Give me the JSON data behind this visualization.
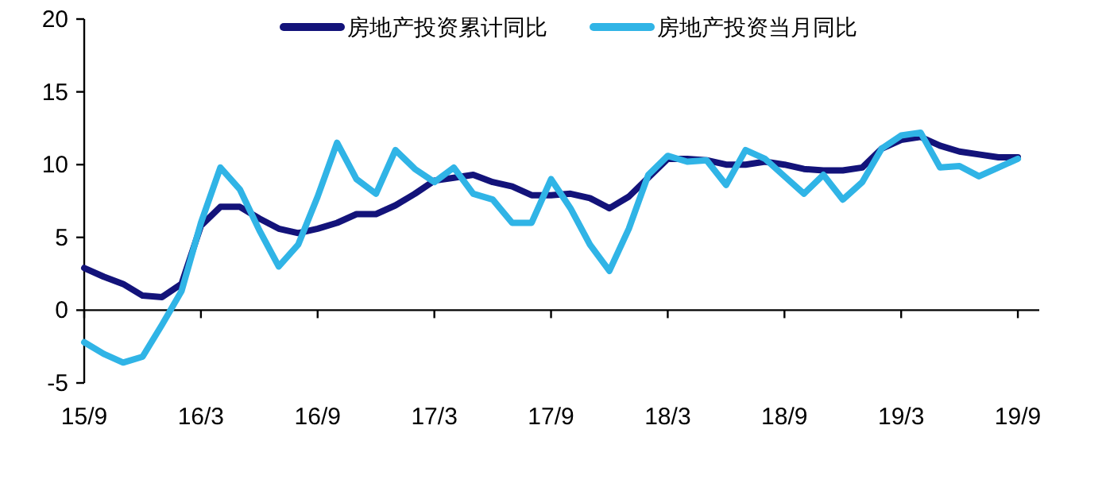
{
  "chart_data": {
    "type": "line",
    "categories": [
      "15/9",
      null,
      null,
      null,
      null,
      null,
      "16/3",
      null,
      null,
      null,
      null,
      null,
      "16/9",
      null,
      null,
      null,
      null,
      null,
      "17/3",
      null,
      null,
      null,
      null,
      null,
      "17/9",
      null,
      null,
      null,
      null,
      null,
      "18/3",
      null,
      null,
      null,
      null,
      null,
      "18/9",
      null,
      null,
      null,
      null,
      null,
      "19/3",
      null,
      null,
      null,
      null,
      null,
      "19/9"
    ],
    "series": [
      {
        "name": "房地产投资累计同比",
        "color": "#13137a",
        "values": [
          2.9,
          2.3,
          1.8,
          1.0,
          0.9,
          1.8,
          5.8,
          7.1,
          7.1,
          6.3,
          5.6,
          5.3,
          5.6,
          6.0,
          6.6,
          6.6,
          7.2,
          8.0,
          8.9,
          9.1,
          9.3,
          8.8,
          8.5,
          7.9,
          7.9,
          8.0,
          7.7,
          7.0,
          7.8,
          9.1,
          10.4,
          10.4,
          10.3,
          10.0,
          10.0,
          10.2,
          10.0,
          9.7,
          9.6,
          9.6,
          9.8,
          11.1,
          11.7,
          11.9,
          11.3,
          10.9,
          10.7,
          10.5,
          10.5
        ]
      },
      {
        "name": "房地产投资当月同比",
        "color": "#30b4e6",
        "values": [
          -2.2,
          -3.0,
          -3.6,
          -3.2,
          -1.0,
          1.3,
          6.0,
          9.8,
          8.3,
          5.5,
          3.0,
          4.5,
          7.8,
          11.5,
          9.0,
          8.0,
          11.0,
          9.7,
          8.8,
          9.8,
          8.0,
          7.6,
          6.0,
          6.0,
          9.0,
          7.0,
          4.5,
          2.7,
          5.6,
          9.3,
          10.6,
          10.2,
          10.3,
          8.6,
          11.0,
          10.4,
          9.2,
          8.0,
          9.3,
          7.6,
          8.8,
          11.1,
          12.0,
          12.2,
          9.8,
          9.9,
          9.2,
          9.8,
          10.4
        ]
      }
    ],
    "ylim": [
      -5,
      20
    ],
    "yticks": [
      -5,
      0,
      5,
      10,
      15,
      20
    ],
    "legend": "top",
    "marker": "none",
    "line_style": "solid"
  }
}
